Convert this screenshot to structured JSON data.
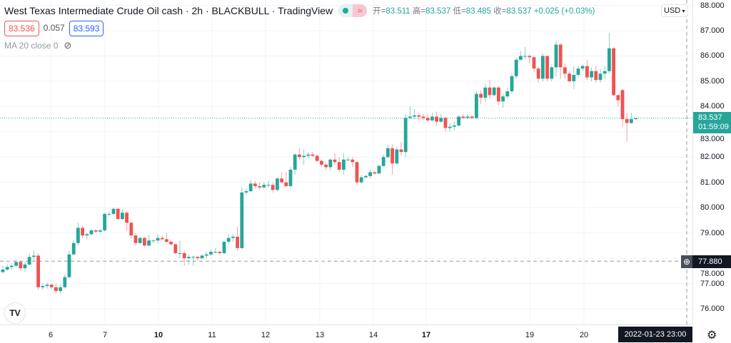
{
  "header": {
    "title": "West Texas Intermediate Crude Oil cash · 2h · BLACKBULL · TradingView",
    "ohlc": [
      {
        "k": "开=",
        "v": "83.511"
      },
      {
        "k": "高=",
        "v": "83.537"
      },
      {
        "k": "低=",
        "v": "83.485"
      },
      {
        "k": "收=",
        "v": "83.537"
      }
    ],
    "change": "+0.025 (+0.03%)",
    "wave_icon": "≈"
  },
  "quote": {
    "bid": "83.536",
    "spread": "0.057",
    "ask": "83.593"
  },
  "indicator": {
    "label": "MA 20 close 0",
    "eye_icon": "eye-off"
  },
  "currency": "USD",
  "current_price": {
    "price": "83.537",
    "countdown": "01:59:09"
  },
  "crosshair": {
    "price": "77.880",
    "price_value": 77.88,
    "date": "2022-01-23  23:00"
  },
  "colors": {
    "up": "#26a69a",
    "down": "#ef5350"
  },
  "chart_data": {
    "type": "candlestick",
    "ylim": [
      75.5,
      88
    ],
    "price_ticks": [
      "88.000",
      "87.000",
      "86.000",
      "85.000",
      "84.000",
      "83.000",
      "82.000",
      "81.000",
      "80.000",
      "79.000",
      "78.000",
      "77.000",
      "76.000"
    ],
    "date_ticks": [
      "6",
      "7",
      "10",
      "11",
      "12",
      "13",
      "14",
      "17",
      "19",
      "20"
    ],
    "grid": true,
    "candles": [
      [
        77.45,
        77.7,
        77.4,
        77.55
      ],
      [
        77.55,
        77.75,
        77.5,
        77.65
      ],
      [
        77.65,
        77.8,
        77.55,
        77.7
      ],
      [
        77.7,
        77.95,
        77.65,
        77.85
      ],
      [
        77.85,
        77.9,
        77.5,
        77.6
      ],
      [
        77.6,
        77.85,
        77.45,
        77.75
      ],
      [
        77.75,
        78.2,
        77.7,
        78.05
      ],
      [
        78.05,
        78.3,
        77.9,
        78.1
      ],
      [
        78.1,
        78.2,
        76.75,
        76.85
      ],
      [
        76.85,
        77.0,
        76.75,
        76.9
      ],
      [
        76.9,
        77.05,
        76.8,
        76.95
      ],
      [
        76.95,
        77.0,
        76.8,
        76.85
      ],
      [
        76.85,
        77.0,
        76.6,
        76.7
      ],
      [
        76.7,
        76.95,
        76.6,
        76.85
      ],
      [
        76.85,
        77.35,
        76.8,
        77.25
      ],
      [
        77.25,
        78.3,
        77.2,
        78.15
      ],
      [
        78.15,
        78.7,
        78.1,
        78.6
      ],
      [
        78.6,
        79.4,
        78.5,
        79.2
      ],
      [
        79.2,
        79.3,
        78.8,
        78.9
      ],
      [
        78.9,
        79.0,
        78.75,
        78.95
      ],
      [
        78.95,
        79.15,
        78.9,
        79.1
      ],
      [
        79.1,
        79.15,
        79.0,
        79.05
      ],
      [
        79.05,
        79.15,
        79.0,
        79.1
      ],
      [
        79.1,
        79.8,
        79.05,
        79.75
      ],
      [
        79.75,
        79.85,
        79.65,
        79.75
      ],
      [
        79.75,
        80.0,
        79.7,
        79.95
      ],
      [
        79.95,
        80.0,
        79.5,
        79.55
      ],
      [
        79.55,
        79.95,
        79.5,
        79.8
      ],
      [
        79.8,
        79.85,
        79.1,
        79.4
      ],
      [
        79.4,
        79.45,
        78.75,
        78.9
      ],
      [
        78.9,
        79.0,
        78.5,
        78.6
      ],
      [
        78.6,
        78.85,
        78.55,
        78.8
      ],
      [
        78.8,
        78.85,
        78.45,
        78.5
      ],
      [
        78.5,
        78.9,
        78.45,
        78.7
      ],
      [
        78.7,
        78.75,
        78.6,
        78.7
      ],
      [
        78.7,
        78.95,
        78.6,
        78.8
      ],
      [
        78.8,
        78.9,
        78.7,
        78.75
      ],
      [
        78.75,
        79.0,
        78.6,
        78.65
      ],
      [
        78.65,
        78.7,
        78.5,
        78.55
      ],
      [
        78.55,
        78.6,
        78.15,
        78.2
      ],
      [
        78.2,
        78.7,
        78.0,
        78.2
      ],
      [
        78.2,
        78.3,
        77.7,
        78.0
      ],
      [
        78.0,
        78.15,
        77.75,
        78.05
      ],
      [
        78.05,
        78.1,
        77.7,
        78.05
      ],
      [
        78.05,
        78.1,
        77.9,
        78.0
      ],
      [
        78.0,
        78.15,
        77.95,
        78.1
      ],
      [
        78.1,
        78.25,
        78.0,
        78.15
      ],
      [
        78.15,
        78.35,
        78.1,
        78.25
      ],
      [
        78.25,
        78.4,
        78.2,
        78.25
      ],
      [
        78.25,
        78.3,
        78.15,
        78.2
      ],
      [
        78.2,
        78.7,
        78.15,
        78.65
      ],
      [
        78.65,
        78.95,
        78.55,
        78.8
      ],
      [
        78.8,
        78.95,
        78.65,
        78.85
      ],
      [
        78.85,
        79.25,
        78.3,
        78.4
      ],
      [
        78.4,
        80.8,
        78.35,
        80.6
      ],
      [
        80.6,
        80.75,
        80.5,
        80.65
      ],
      [
        80.65,
        81.1,
        80.6,
        80.95
      ],
      [
        80.95,
        81.05,
        80.75,
        80.85
      ],
      [
        80.85,
        81.0,
        80.7,
        80.8
      ],
      [
        80.8,
        81.0,
        80.75,
        80.9
      ],
      [
        80.9,
        81.05,
        80.8,
        80.9
      ],
      [
        80.9,
        81.0,
        80.6,
        80.7
      ],
      [
        80.7,
        81.2,
        80.65,
        81.15
      ],
      [
        81.15,
        81.4,
        80.95,
        81.0
      ],
      [
        81.0,
        81.4,
        80.8,
        80.85
      ],
      [
        80.85,
        81.6,
        80.8,
        81.5
      ],
      [
        81.5,
        82.15,
        81.3,
        82.1
      ],
      [
        82.1,
        82.35,
        81.9,
        82.0
      ],
      [
        82.0,
        82.3,
        81.7,
        82.05
      ],
      [
        82.05,
        82.2,
        81.95,
        82.1
      ],
      [
        82.1,
        82.2,
        82.0,
        82.05
      ],
      [
        82.05,
        82.1,
        81.8,
        81.85
      ],
      [
        81.85,
        81.9,
        81.6,
        81.7
      ],
      [
        81.7,
        81.75,
        81.5,
        81.6
      ],
      [
        81.6,
        81.95,
        81.45,
        81.9
      ],
      [
        81.9,
        82.15,
        81.7,
        81.8
      ],
      [
        81.8,
        82.0,
        81.4,
        81.5
      ],
      [
        81.5,
        82.15,
        81.3,
        81.9
      ],
      [
        81.9,
        82.0,
        81.85,
        81.9
      ],
      [
        81.9,
        82.0,
        81.6,
        81.8
      ],
      [
        81.8,
        81.85,
        80.9,
        81.0
      ],
      [
        81.0,
        81.3,
        80.95,
        81.2
      ],
      [
        81.2,
        81.3,
        81.15,
        81.25
      ],
      [
        81.25,
        81.5,
        81.15,
        81.4
      ],
      [
        81.4,
        81.45,
        81.3,
        81.35
      ],
      [
        81.35,
        81.7,
        81.35,
        81.65
      ],
      [
        81.65,
        82.1,
        81.6,
        82.0
      ],
      [
        82.0,
        82.5,
        81.95,
        82.35
      ],
      [
        82.35,
        82.5,
        81.3,
        81.75
      ],
      [
        81.75,
        82.4,
        81.7,
        82.3
      ],
      [
        82.3,
        82.6,
        82.05,
        82.2
      ],
      [
        82.2,
        83.7,
        82.0,
        83.55
      ],
      [
        83.55,
        84.0,
        83.5,
        83.6
      ],
      [
        83.6,
        83.9,
        83.5,
        83.65
      ],
      [
        83.65,
        83.75,
        83.45,
        83.6
      ],
      [
        83.6,
        83.7,
        83.45,
        83.55
      ],
      [
        83.55,
        83.7,
        83.4,
        83.45
      ],
      [
        83.45,
        83.75,
        83.4,
        83.6
      ],
      [
        83.6,
        83.8,
        83.25,
        83.4
      ],
      [
        83.4,
        83.7,
        83.35,
        83.55
      ],
      [
        83.55,
        83.6,
        83.0,
        83.15
      ],
      [
        83.15,
        83.35,
        83.0,
        83.2
      ],
      [
        83.2,
        83.4,
        83.05,
        83.25
      ],
      [
        83.25,
        83.65,
        83.2,
        83.6
      ],
      [
        83.6,
        83.7,
        83.5,
        83.55
      ],
      [
        83.55,
        83.7,
        83.5,
        83.6
      ],
      [
        83.6,
        83.65,
        83.5,
        83.55
      ],
      [
        83.55,
        84.6,
        83.5,
        84.5
      ],
      [
        84.5,
        84.65,
        84.1,
        84.35
      ],
      [
        84.35,
        84.9,
        84.2,
        84.75
      ],
      [
        84.75,
        85.05,
        84.3,
        84.45
      ],
      [
        84.45,
        84.8,
        84.4,
        84.75
      ],
      [
        84.75,
        84.8,
        84.05,
        84.2
      ],
      [
        84.2,
        84.5,
        83.95,
        84.4
      ],
      [
        84.4,
        84.75,
        84.3,
        84.6
      ],
      [
        84.6,
        85.3,
        84.5,
        85.2
      ],
      [
        85.2,
        85.95,
        85.1,
        85.85
      ],
      [
        85.85,
        86.2,
        85.8,
        86.0
      ],
      [
        86.0,
        86.35,
        85.85,
        86.0
      ],
      [
        86.0,
        86.05,
        85.7,
        85.95
      ],
      [
        85.95,
        86.0,
        85.35,
        85.5
      ],
      [
        85.5,
        85.6,
        84.95,
        85.1
      ],
      [
        85.1,
        86.1,
        85.0,
        86.0
      ],
      [
        86.0,
        86.0,
        85.0,
        85.1
      ],
      [
        85.1,
        85.65,
        85.0,
        85.55
      ],
      [
        85.55,
        86.6,
        85.2,
        86.45
      ],
      [
        86.45,
        86.5,
        85.1,
        85.55
      ],
      [
        85.55,
        85.7,
        85.1,
        85.3
      ],
      [
        85.3,
        85.4,
        84.95,
        85.0
      ],
      [
        85.0,
        85.6,
        84.7,
        85.25
      ],
      [
        85.25,
        85.6,
        85.15,
        85.5
      ],
      [
        85.5,
        85.65,
        85.4,
        85.6
      ],
      [
        85.6,
        85.85,
        85.05,
        85.15
      ],
      [
        85.15,
        85.55,
        85.0,
        85.4
      ],
      [
        85.4,
        85.6,
        84.95,
        85.05
      ],
      [
        85.05,
        85.5,
        84.95,
        85.3
      ],
      [
        85.3,
        85.6,
        85.1,
        85.4
      ],
      [
        85.4,
        86.9,
        85.3,
        86.3
      ],
      [
        86.3,
        86.35,
        84.4,
        84.45
      ],
      [
        84.45,
        84.5,
        84.0,
        84.25
      ],
      [
        84.65,
        84.7,
        83.2,
        83.5
      ],
      [
        83.5,
        83.75,
        82.6,
        83.35
      ],
      [
        83.35,
        83.75,
        83.3,
        83.5
      ],
      [
        83.5,
        83.55,
        83.48,
        83.537
      ]
    ]
  }
}
